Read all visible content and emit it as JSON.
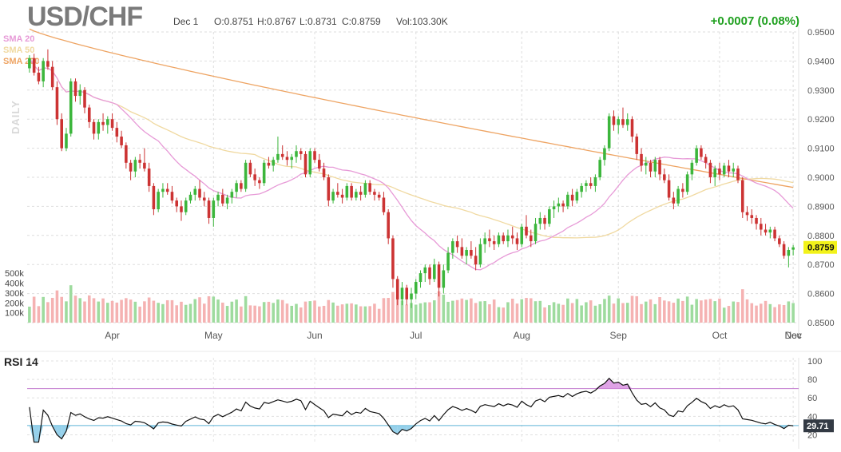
{
  "header": {
    "symbol": "USD/CHF",
    "date": "Dec 1",
    "open": "O:0.8751",
    "high": "H:0.8767",
    "low": "L:0.8731",
    "close": "C:0.8759",
    "volume": "Vol:103.30K",
    "change": "+0.0007 (0.08%)"
  },
  "timeframe_label": "DAILY",
  "rsi_title": "RSI 14",
  "colors": {
    "up": "#3cb63c",
    "down": "#cc3333",
    "vol_up": "#9edb9e",
    "vol_down": "#f5b2b2",
    "sma20": "#e79ad7",
    "sma50": "#f0d9a0",
    "sma200": "#eea463",
    "rsi_line": "#111111",
    "rsi_upper": "#c37ccf",
    "rsi_lower": "#5db3d6",
    "last_price_bg": "#f2f21a",
    "rsi_badge_bg": "#333a44"
  },
  "chart_data": {
    "type": "candlestick",
    "price_axis": {
      "ticks": [
        "0.9500",
        "0.9400",
        "0.9300",
        "0.9200",
        "0.9100",
        "0.9000",
        "0.8900",
        "0.8800",
        "0.8700",
        "0.8600",
        "0.8500"
      ],
      "range": [
        0.85,
        0.95
      ]
    },
    "volume_axis": {
      "ticks": [
        "500k",
        "400k",
        "300k",
        "200k",
        "100k"
      ],
      "range": [
        0,
        550000
      ]
    },
    "months": [
      "Apr",
      "May",
      "Jun",
      "Jul",
      "Aug",
      "Sep",
      "Oct",
      "Nov",
      "Dec"
    ],
    "last_price": "0.8759",
    "legend": [
      {
        "name": "SMA 20",
        "color": "#e79ad7"
      },
      {
        "name": "SMA 50",
        "color": "#f0d9a0"
      },
      {
        "name": "SMA 200",
        "color": "#eea463"
      }
    ],
    "candles": [
      [
        0.9375,
        0.942,
        0.936,
        0.941
      ],
      [
        0.941,
        0.9425,
        0.935,
        0.936
      ],
      [
        0.936,
        0.938,
        0.932,
        0.933
      ],
      [
        0.933,
        0.941,
        0.931,
        0.94
      ],
      [
        0.94,
        0.944,
        0.937,
        0.938
      ],
      [
        0.938,
        0.94,
        0.93,
        0.931
      ],
      [
        0.931,
        0.933,
        0.918,
        0.92
      ],
      [
        0.92,
        0.922,
        0.909,
        0.91
      ],
      [
        0.91,
        0.917,
        0.909,
        0.915
      ],
      [
        0.915,
        0.934,
        0.914,
        0.933
      ],
      [
        0.933,
        0.934,
        0.926,
        0.928
      ],
      [
        0.928,
        0.932,
        0.925,
        0.93
      ],
      [
        0.93,
        0.931,
        0.922,
        0.924
      ],
      [
        0.924,
        0.925,
        0.917,
        0.919
      ],
      [
        0.919,
        0.92,
        0.913,
        0.915
      ],
      [
        0.915,
        0.92,
        0.913,
        0.919
      ],
      [
        0.919,
        0.922,
        0.916,
        0.918
      ],
      [
        0.918,
        0.921,
        0.915,
        0.92
      ],
      [
        0.92,
        0.922,
        0.916,
        0.917
      ],
      [
        0.917,
        0.919,
        0.912,
        0.914
      ],
      [
        0.914,
        0.916,
        0.91,
        0.911
      ],
      [
        0.911,
        0.912,
        0.903,
        0.905
      ],
      [
        0.905,
        0.906,
        0.899,
        0.902
      ],
      [
        0.902,
        0.907,
        0.9,
        0.906
      ],
      [
        0.906,
        0.908,
        0.903,
        0.905
      ],
      [
        0.905,
        0.91,
        0.902,
        0.903
      ],
      [
        0.903,
        0.905,
        0.895,
        0.897
      ],
      [
        0.897,
        0.898,
        0.887,
        0.889
      ],
      [
        0.889,
        0.896,
        0.888,
        0.895
      ],
      [
        0.895,
        0.898,
        0.893,
        0.896
      ],
      [
        0.896,
        0.898,
        0.894,
        0.895
      ],
      [
        0.895,
        0.897,
        0.891,
        0.892
      ],
      [
        0.892,
        0.893,
        0.888,
        0.89
      ],
      [
        0.89,
        0.892,
        0.885,
        0.888
      ],
      [
        0.888,
        0.893,
        0.887,
        0.892
      ],
      [
        0.892,
        0.895,
        0.891,
        0.894
      ],
      [
        0.894,
        0.897,
        0.892,
        0.896
      ],
      [
        0.896,
        0.899,
        0.892,
        0.893
      ],
      [
        0.893,
        0.895,
        0.89,
        0.892
      ],
      [
        0.892,
        0.893,
        0.884,
        0.886
      ],
      [
        0.886,
        0.893,
        0.883,
        0.892
      ],
      [
        0.892,
        0.895,
        0.89,
        0.894
      ],
      [
        0.894,
        0.896,
        0.89,
        0.891
      ],
      [
        0.891,
        0.894,
        0.889,
        0.893
      ],
      [
        0.893,
        0.896,
        0.891,
        0.895
      ],
      [
        0.895,
        0.899,
        0.893,
        0.898
      ],
      [
        0.898,
        0.899,
        0.895,
        0.896
      ],
      [
        0.896,
        0.906,
        0.895,
        0.905
      ],
      [
        0.905,
        0.906,
        0.9,
        0.901
      ],
      [
        0.901,
        0.903,
        0.897,
        0.899
      ],
      [
        0.899,
        0.9,
        0.896,
        0.898
      ],
      [
        0.898,
        0.906,
        0.897,
        0.905
      ],
      [
        0.905,
        0.907,
        0.903,
        0.904
      ],
      [
        0.904,
        0.907,
        0.902,
        0.906
      ],
      [
        0.906,
        0.914,
        0.905,
        0.908
      ],
      [
        0.908,
        0.911,
        0.906,
        0.907
      ],
      [
        0.907,
        0.909,
        0.904,
        0.906
      ],
      [
        0.906,
        0.908,
        0.903,
        0.907
      ],
      [
        0.907,
        0.911,
        0.905,
        0.909
      ],
      [
        0.909,
        0.91,
        0.906,
        0.908
      ],
      [
        0.908,
        0.909,
        0.9,
        0.901
      ],
      [
        0.901,
        0.91,
        0.9,
        0.909
      ],
      [
        0.909,
        0.91,
        0.905,
        0.906
      ],
      [
        0.906,
        0.908,
        0.902,
        0.903
      ],
      [
        0.903,
        0.905,
        0.899,
        0.9
      ],
      [
        0.9,
        0.901,
        0.89,
        0.892
      ],
      [
        0.892,
        0.896,
        0.891,
        0.895
      ],
      [
        0.895,
        0.898,
        0.893,
        0.894
      ],
      [
        0.894,
        0.896,
        0.891,
        0.893
      ],
      [
        0.893,
        0.898,
        0.892,
        0.897
      ],
      [
        0.897,
        0.898,
        0.892,
        0.893
      ],
      [
        0.893,
        0.896,
        0.892,
        0.895
      ],
      [
        0.895,
        0.897,
        0.892,
        0.894
      ],
      [
        0.894,
        0.899,
        0.893,
        0.898
      ],
      [
        0.898,
        0.899,
        0.894,
        0.895
      ],
      [
        0.895,
        0.896,
        0.892,
        0.894
      ],
      [
        0.894,
        0.895,
        0.892,
        0.893
      ],
      [
        0.893,
        0.895,
        0.887,
        0.888
      ],
      [
        0.888,
        0.889,
        0.877,
        0.879
      ],
      [
        0.879,
        0.88,
        0.862,
        0.865
      ],
      [
        0.865,
        0.866,
        0.856,
        0.858
      ],
      [
        0.858,
        0.864,
        0.856,
        0.862
      ],
      [
        0.862,
        0.863,
        0.856,
        0.858
      ],
      [
        0.858,
        0.862,
        0.855,
        0.86
      ],
      [
        0.86,
        0.865,
        0.858,
        0.864
      ],
      [
        0.864,
        0.868,
        0.862,
        0.867
      ],
      [
        0.867,
        0.87,
        0.864,
        0.869
      ],
      [
        0.869,
        0.87,
        0.863,
        0.865
      ],
      [
        0.865,
        0.872,
        0.864,
        0.87
      ],
      [
        0.87,
        0.871,
        0.859,
        0.862
      ],
      [
        0.862,
        0.87,
        0.86,
        0.868
      ],
      [
        0.868,
        0.876,
        0.867,
        0.874
      ],
      [
        0.874,
        0.879,
        0.872,
        0.878
      ],
      [
        0.878,
        0.88,
        0.874,
        0.876
      ],
      [
        0.876,
        0.879,
        0.872,
        0.873
      ],
      [
        0.873,
        0.876,
        0.87,
        0.875
      ],
      [
        0.875,
        0.878,
        0.872,
        0.873
      ],
      [
        0.873,
        0.876,
        0.868,
        0.87
      ],
      [
        0.87,
        0.879,
        0.869,
        0.877
      ],
      [
        0.877,
        0.881,
        0.874,
        0.879
      ],
      [
        0.879,
        0.882,
        0.876,
        0.878
      ],
      [
        0.878,
        0.88,
        0.875,
        0.877
      ],
      [
        0.877,
        0.881,
        0.876,
        0.88
      ],
      [
        0.88,
        0.881,
        0.877,
        0.878
      ],
      [
        0.878,
        0.882,
        0.876,
        0.88
      ],
      [
        0.88,
        0.883,
        0.877,
        0.879
      ],
      [
        0.879,
        0.881,
        0.875,
        0.877
      ],
      [
        0.877,
        0.884,
        0.876,
        0.883
      ],
      [
        0.883,
        0.887,
        0.879,
        0.88
      ],
      [
        0.88,
        0.882,
        0.876,
        0.878
      ],
      [
        0.878,
        0.886,
        0.877,
        0.884
      ],
      [
        0.884,
        0.888,
        0.882,
        0.886
      ],
      [
        0.886,
        0.887,
        0.882,
        0.884
      ],
      [
        0.884,
        0.89,
        0.883,
        0.889
      ],
      [
        0.889,
        0.892,
        0.886,
        0.89
      ],
      [
        0.89,
        0.893,
        0.888,
        0.891
      ],
      [
        0.891,
        0.892,
        0.888,
        0.89
      ],
      [
        0.89,
        0.895,
        0.889,
        0.894
      ],
      [
        0.894,
        0.896,
        0.89,
        0.892
      ],
      [
        0.892,
        0.896,
        0.891,
        0.895
      ],
      [
        0.895,
        0.898,
        0.893,
        0.897
      ],
      [
        0.897,
        0.899,
        0.895,
        0.898
      ],
      [
        0.898,
        0.9,
        0.896,
        0.897
      ],
      [
        0.897,
        0.901,
        0.895,
        0.9
      ],
      [
        0.9,
        0.907,
        0.899,
        0.906
      ],
      [
        0.906,
        0.911,
        0.904,
        0.91
      ],
      [
        0.91,
        0.922,
        0.909,
        0.921
      ],
      [
        0.921,
        0.923,
        0.916,
        0.918
      ],
      [
        0.918,
        0.921,
        0.915,
        0.92
      ],
      [
        0.92,
        0.924,
        0.917,
        0.918
      ],
      [
        0.918,
        0.922,
        0.916,
        0.92
      ],
      [
        0.92,
        0.921,
        0.912,
        0.914
      ],
      [
        0.914,
        0.915,
        0.906,
        0.908
      ],
      [
        0.908,
        0.91,
        0.902,
        0.904
      ],
      [
        0.904,
        0.907,
        0.901,
        0.905
      ],
      [
        0.905,
        0.906,
        0.9,
        0.902
      ],
      [
        0.902,
        0.907,
        0.9,
        0.906
      ],
      [
        0.906,
        0.907,
        0.899,
        0.901
      ],
      [
        0.901,
        0.903,
        0.898,
        0.899
      ],
      [
        0.899,
        0.901,
        0.892,
        0.893
      ],
      [
        0.893,
        0.895,
        0.889,
        0.891
      ],
      [
        0.891,
        0.897,
        0.89,
        0.896
      ],
      [
        0.896,
        0.898,
        0.893,
        0.895
      ],
      [
        0.895,
        0.902,
        0.894,
        0.901
      ],
      [
        0.901,
        0.906,
        0.899,
        0.905
      ],
      [
        0.905,
        0.911,
        0.904,
        0.91
      ],
      [
        0.91,
        0.911,
        0.906,
        0.907
      ],
      [
        0.907,
        0.908,
        0.903,
        0.905
      ],
      [
        0.905,
        0.906,
        0.898,
        0.9
      ],
      [
        0.9,
        0.904,
        0.897,
        0.903
      ],
      [
        0.903,
        0.905,
        0.899,
        0.901
      ],
      [
        0.901,
        0.905,
        0.9,
        0.904
      ],
      [
        0.904,
        0.906,
        0.9,
        0.902
      ],
      [
        0.902,
        0.905,
        0.9,
        0.903
      ],
      [
        0.903,
        0.904,
        0.898,
        0.899
      ],
      [
        0.899,
        0.9,
        0.886,
        0.888
      ],
      [
        0.888,
        0.89,
        0.885,
        0.887
      ],
      [
        0.887,
        0.889,
        0.884,
        0.886
      ],
      [
        0.886,
        0.887,
        0.882,
        0.884
      ],
      [
        0.884,
        0.886,
        0.88,
        0.882
      ],
      [
        0.882,
        0.884,
        0.88,
        0.881
      ],
      [
        0.881,
        0.883,
        0.879,
        0.882
      ],
      [
        0.882,
        0.883,
        0.878,
        0.879
      ],
      [
        0.879,
        0.88,
        0.876,
        0.877
      ],
      [
        0.877,
        0.878,
        0.872,
        0.873
      ],
      [
        0.873,
        0.876,
        0.869,
        0.875
      ],
      [
        0.8751,
        0.8767,
        0.8731,
        0.8759
      ]
    ],
    "rsi": {
      "title": "RSI 14",
      "axis_ticks": [
        "100",
        "80",
        "60",
        "40",
        "20"
      ],
      "range": [
        10,
        100
      ],
      "upper_band": 70,
      "lower_band": 30,
      "last_value": "29.71"
    }
  }
}
